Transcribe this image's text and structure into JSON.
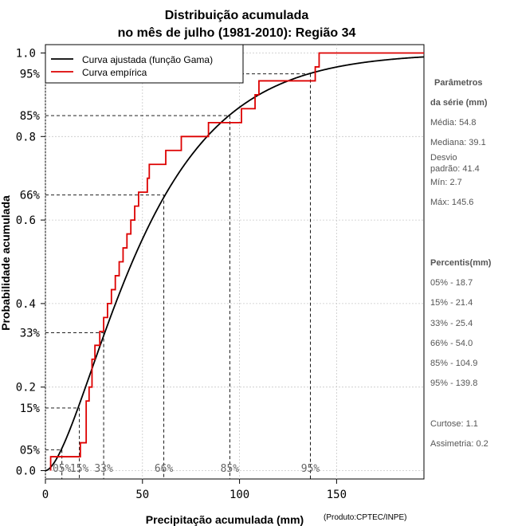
{
  "chart_data": {
    "type": "line",
    "title_line1": "Distribuição acumulada",
    "title_line2": "no mês de julho (1981-2010): Região 34",
    "xlabel": "Precipitação acumulada (mm)",
    "ylabel": "Probabilidade acumulada",
    "credit": "(Produto:CPTEC/INPE)",
    "xlim": [
      0,
      195
    ],
    "ylim": [
      -0.02,
      1.02
    ],
    "x_ticks": [
      0,
      50,
      100,
      150
    ],
    "x_tick_labels": [
      "0",
      "50",
      "100",
      "150"
    ],
    "y_ticks": [
      0.0,
      0.2,
      0.4,
      0.6,
      0.8,
      1.0
    ],
    "y_tick_labels": [
      "0.0",
      "0.2",
      "0.4",
      "0.6",
      "0.8",
      "1.0"
    ],
    "legend": {
      "position": "top-left",
      "entries": [
        {
          "label": "Curva ajustada (função Gama)",
          "color": "#000000"
        },
        {
          "label": "Curva empírica",
          "color": "#dd0000"
        }
      ]
    },
    "percentile_lines": [
      {
        "x": 8.5,
        "p": 0.05,
        "y_label": "05%",
        "x_label": "05%"
      },
      {
        "x": 17.5,
        "p": 0.15,
        "y_label": "15%",
        "x_label": "15%"
      },
      {
        "x": 30.0,
        "p": 0.33,
        "y_label": "33%",
        "x_label": "33%"
      },
      {
        "x": 61.0,
        "p": 0.66,
        "y_label": "66%",
        "x_label": "66%"
      },
      {
        "x": 95.0,
        "p": 0.85,
        "y_label": "85%",
        "x_label": "85%"
      },
      {
        "x": 136.5,
        "p": 0.95,
        "y_label": "95%",
        "x_label": "95%"
      }
    ],
    "series": [
      {
        "name": "Curva ajustada (função Gama)",
        "type": "gamma_cdf",
        "shape": 1.75,
        "scale": 31.3,
        "color": "#000000"
      },
      {
        "name": "Curva empírica",
        "type": "step",
        "color": "#dd0000",
        "x": [
          2.7,
          18.0,
          21.0,
          22.5,
          24.0,
          25.5,
          28.0,
          30.0,
          32.0,
          34.0,
          36.0,
          38.0,
          40.0,
          42.0,
          44.0,
          46.0,
          48.0,
          51.0,
          52.5,
          53.5,
          62.0,
          66.0,
          70.0,
          84.0,
          99.0,
          101.0,
          106.0,
          108.0,
          110.0,
          138.0,
          139.0,
          141.0,
          145.6
        ],
        "y": [
          0.0333,
          0.0667,
          0.1667,
          0.2,
          0.2667,
          0.3,
          0.3333,
          0.3667,
          0.4,
          0.4333,
          0.4667,
          0.5,
          0.5333,
          0.5667,
          0.6,
          0.6333,
          0.6667,
          0.6667,
          0.7,
          0.7333,
          0.7667,
          0.7667,
          0.8,
          0.8333,
          0.8333,
          0.8667,
          0.8667,
          0.9,
          0.9333,
          0.9333,
          0.9667,
          1.0,
          1.0
        ]
      }
    ]
  },
  "side_panel": {
    "params_heading_line1": "Parâmetros",
    "params_heading_line2": "da série (mm)",
    "media": "Média: 54.8",
    "mediana": "Mediana: 39.1",
    "desvio_line1": "Desvio",
    "desvio_line2": "padrão: 41.4",
    "min": "Mín: 2.7",
    "max": "Máx: 145.6",
    "percentis_heading": "Percentis(mm)",
    "p05": "05% - 18.7",
    "p15": "15% - 21.4",
    "p33": "33% - 25.4",
    "p66": "66% - 54.0",
    "p85": "85% - 104.9",
    "p95": "95% - 139.8",
    "curtose": "Curtose: 1.1",
    "assimetria": "Assimetria: 0.2"
  }
}
